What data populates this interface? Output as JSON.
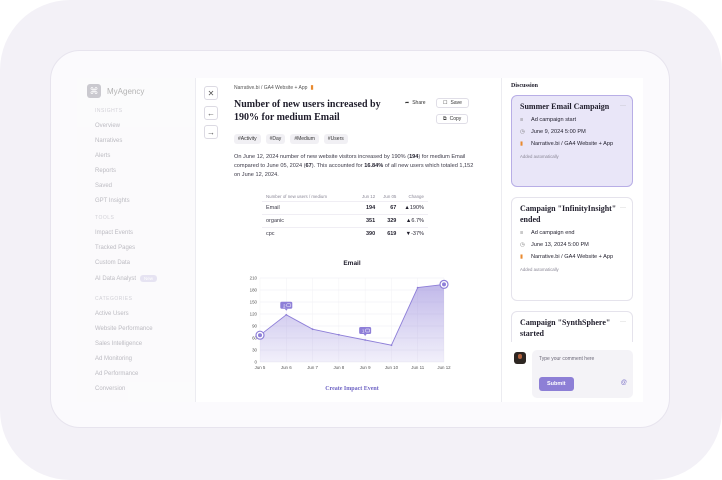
{
  "sidebar": {
    "brand": "MyAgency",
    "sections": [
      {
        "label": "INSIGHTS",
        "items": [
          "Overview",
          "Narratives",
          "Alerts",
          "Reports",
          "Saved",
          "GPT Insights"
        ]
      },
      {
        "label": "TOOLS",
        "items": [
          "Impact Events",
          "Tracked Pages",
          "Custom Data",
          "AI Data Analyst"
        ]
      },
      {
        "label": "CATEGORIES",
        "items": [
          "Active Users",
          "Website Performance",
          "Sales Intelligence",
          "Ad Monitoring",
          "Ad Performance",
          "Conversion"
        ]
      }
    ],
    "new_badge": "New"
  },
  "insight": {
    "breadcrumb": "Narrative.bi / GA4 Website + App",
    "title": "Number of new users increased by 190% for medium Email",
    "share_label": "Share",
    "save_label": "Save",
    "copy_label": "Copy",
    "tags": [
      "#Activity",
      "#Day",
      "#Medium",
      "#Users"
    ],
    "desc_1": "On June 12, 2024 number of new website visitors increased by 190% (",
    "desc_2": "194",
    "desc_3": ") for medium Email compared to June 05, 2024 (",
    "desc_4": "67",
    "desc_5": "). This accounted for ",
    "desc_6": "16.84%",
    "desc_7": " of all new users which totaled 1,152 on June 12, 2024."
  },
  "table": {
    "headers": [
      "Number of new users / medium",
      "Jun 12",
      "Jun 05",
      "Change"
    ],
    "rows": [
      {
        "medium": "Email",
        "jun12": "194",
        "jun05": "67",
        "change": "190%",
        "dir": "up"
      },
      {
        "medium": "organic",
        "jun12": "351",
        "jun05": "329",
        "change": "6.7%",
        "dir": "up"
      },
      {
        "medium": "cpc",
        "jun12": "390",
        "jun05": "619",
        "change": "-37%",
        "dir": "down"
      }
    ]
  },
  "chart_data": {
    "type": "area",
    "title": "Email",
    "categories": [
      "Jun 5",
      "Jun 6",
      "Jun 7",
      "Jun 8",
      "Jun 9",
      "Jun 10",
      "Jun 11",
      "Jun 12"
    ],
    "values": [
      67,
      118,
      82,
      68,
      55,
      42,
      186,
      194
    ],
    "ylim": [
      0,
      210
    ],
    "yticks": [
      0,
      30,
      60,
      90,
      120,
      150,
      180,
      210
    ],
    "annotations": [
      {
        "category": "Jun 6",
        "label": "2"
      },
      {
        "category": "Jun 9",
        "label": "1"
      }
    ],
    "highlighted": [
      "Jun 5",
      "Jun 12"
    ],
    "grid": true,
    "color": "#8e7fd8"
  },
  "cta_label": "Create Impact Event",
  "discussion": {
    "title": "Discussion",
    "cards": [
      {
        "title": "Summer Email Campaign",
        "event": "Ad campaign start",
        "date": "June 9, 2024 5:00 PM",
        "source": "Narrative.bi / GA4 Website + App",
        "note": "Added automatically"
      },
      {
        "title": "Campaign \"InfinityInsight\" ended",
        "event": "Ad campaign end",
        "date": "June 13, 2024 5:00 PM",
        "source": "Narrative.bi / GA4 Website + App",
        "note": "Added automatically"
      },
      {
        "title": "Campaign \"SynthSphere\" started"
      }
    ],
    "comment_placeholder": "Type your comment here",
    "submit_label": "Submit",
    "at_symbol": "@"
  },
  "colors": {
    "accent": "#8e7fd8",
    "up": "#2e9b5e",
    "down": "#d9473f",
    "card_active": "#e9e6f8"
  }
}
